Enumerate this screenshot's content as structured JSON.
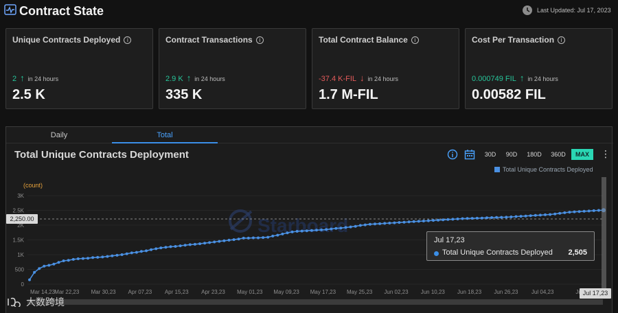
{
  "header": {
    "title": "Contract State",
    "last_updated": "Last Updated: Jul 17, 2023"
  },
  "cards": [
    {
      "title": "Unique Contracts Deployed",
      "delta": "2",
      "delta_dir": "up",
      "period": "in 24 hours",
      "value": "2.5 K"
    },
    {
      "title": "Contract Transactions",
      "delta": "2.9 K",
      "delta_dir": "up",
      "period": "in 24 hours",
      "value": "335 K"
    },
    {
      "title": "Total Contract Balance",
      "delta": "-37.4 K-FIL",
      "delta_dir": "down",
      "period": "in 24 hours",
      "value": "1.7 M-FIL"
    },
    {
      "title": "Cost Per Transaction",
      "delta": "0.000749 FIL",
      "delta_dir": "up",
      "period": "in 24 hours",
      "value": "0.00582 FIL"
    }
  ],
  "tabs": [
    {
      "label": "Daily",
      "active": false
    },
    {
      "label": "Total",
      "active": true
    }
  ],
  "chart_header": {
    "title": "Total Unique Contracts Deployment",
    "ranges": [
      "30D",
      "90D",
      "180D",
      "360D",
      "MAX"
    ],
    "active_range": "MAX"
  },
  "crosshair": {
    "y_value_label": "2,250.00",
    "x_value_label": "Jul 17,23"
  },
  "tooltip": {
    "date": "Jul 17,23",
    "series": "Total Unique Contracts Deployed",
    "value": "2,505"
  },
  "watermark": {
    "text": "大数跨境"
  },
  "colors": {
    "accent": "#3b8fe8",
    "up": "#27c59a",
    "down": "#e65b5b",
    "max_button": "#2ad7b4"
  },
  "chart_data": {
    "type": "line",
    "title": "Total Unique Contracts Deployment",
    "ylabel": "(count)",
    "legend": [
      "Total Unique Contracts Deployed"
    ],
    "legend_position": "top-right",
    "ylim": [
      0,
      3000
    ],
    "yticks": [
      0,
      500,
      1000,
      1500,
      2000,
      2500,
      3000
    ],
    "ytick_labels": [
      "0",
      "500",
      "1K",
      "1.5K",
      "2K",
      "2.5K",
      "3K"
    ],
    "xtick_labels": [
      "Mar 14,23",
      "Mar 22,23",
      "Mar 30,23",
      "Apr 07,23",
      "Apr 15,23",
      "Apr 23,23",
      "May 01,23",
      "May 09,23",
      "May 17,23",
      "May 25,23",
      "Jun 02,23",
      "Jun 10,23",
      "Jun 18,23",
      "Jun 26,23",
      "Jul 04,23",
      "Jul"
    ],
    "series": [
      {
        "name": "Total Unique Contracts Deployed",
        "values": [
          150,
          400,
          530,
          610,
          640,
          680,
          740,
          790,
          810,
          840,
          860,
          870,
          880,
          900,
          910,
          920,
          940,
          960,
          980,
          1000,
          1030,
          1060,
          1080,
          1110,
          1130,
          1170,
          1200,
          1230,
          1250,
          1270,
          1280,
          1300,
          1320,
          1340,
          1350,
          1370,
          1390,
          1410,
          1430,
          1450,
          1470,
          1490,
          1510,
          1530,
          1560,
          1560,
          1570,
          1570,
          1580,
          1590,
          1630,
          1660,
          1700,
          1740,
          1770,
          1790,
          1800,
          1810,
          1820,
          1830,
          1840,
          1850,
          1870,
          1890,
          1900,
          1920,
          1940,
          1960,
          1990,
          2010,
          2030,
          2040,
          2050,
          2060,
          2070,
          2080,
          2090,
          2100,
          2110,
          2120,
          2130,
          2140,
          2150,
          2160,
          2170,
          2180,
          2190,
          2200,
          2210,
          2220,
          2225,
          2230,
          2235,
          2240,
          2250,
          2255,
          2260,
          2265,
          2270,
          2280,
          2290,
          2300,
          2310,
          2320,
          2330,
          2340,
          2350,
          2360,
          2380,
          2400,
          2420,
          2440,
          2450,
          2460,
          2470,
          2480,
          2490,
          2500,
          2505
        ]
      }
    ]
  }
}
